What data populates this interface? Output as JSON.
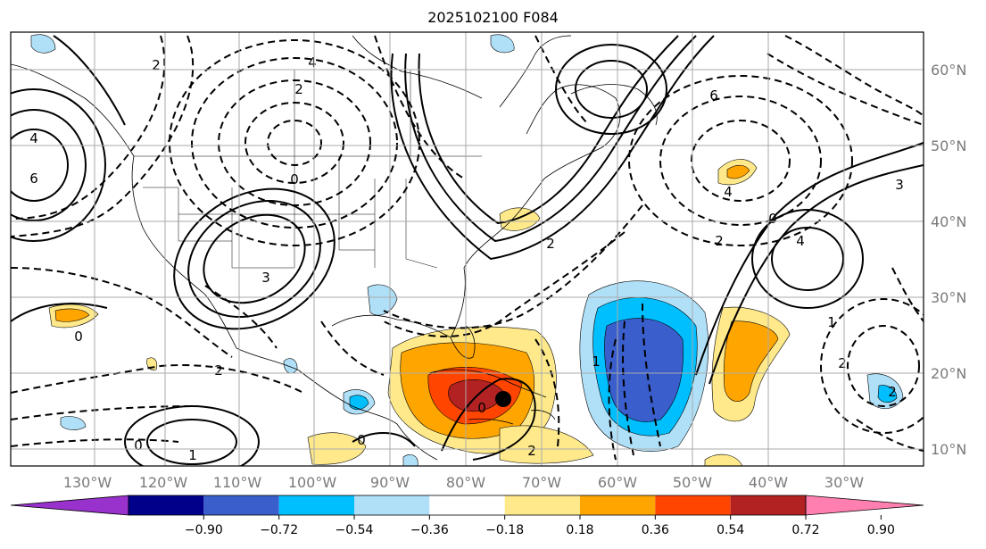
{
  "title": "2025102100 F084",
  "lon_labels": [
    "130°W",
    "120°W",
    "110°W",
    "100°W",
    "90°W",
    "80°W",
    "70°W",
    "60°W",
    "50°W",
    "40°W",
    "30°W"
  ],
  "lat_labels": [
    "60°N",
    "50°N",
    "40°N",
    "30°N",
    "20°N",
    "10°N"
  ],
  "colorbar": {
    "ticks": [
      "−0.90",
      "−0.72",
      "−0.54",
      "−0.36",
      "−0.18",
      "0.18",
      "0.36",
      "0.54",
      "0.72",
      "0.90"
    ],
    "colors": [
      "#9932CC",
      "#00008B",
      "#3a5fcd",
      "#00bfff",
      "#b0e0f8",
      "#ffffff",
      "#ffe98a",
      "#ffa500",
      "#ff4500",
      "#b22222",
      "#ff80b0"
    ]
  },
  "contour_labels": [
    "2",
    "4",
    "6",
    "0",
    "2",
    "3",
    "0",
    "4",
    "2",
    "6",
    "4",
    "2",
    "0",
    "3",
    "2",
    "1",
    "0",
    "2",
    "1",
    "0",
    "1",
    "0",
    "2",
    "2",
    "4"
  ]
}
